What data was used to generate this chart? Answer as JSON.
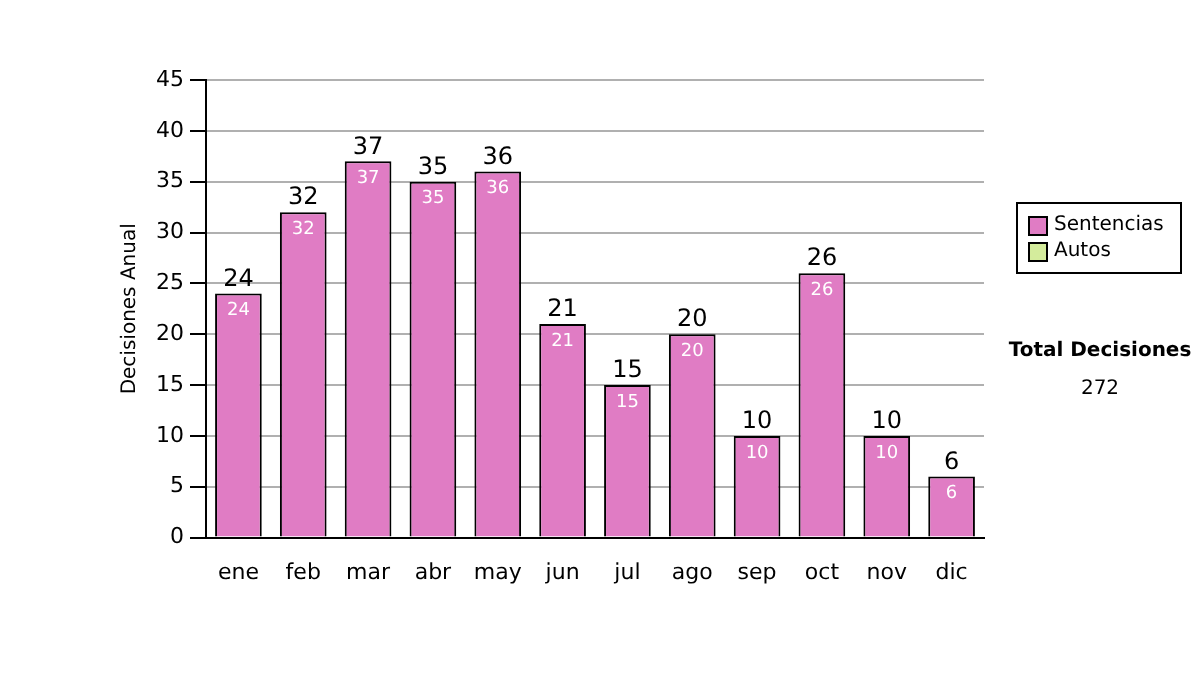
{
  "chart_data": {
    "type": "bar",
    "ylabel": "Decisiones Anual",
    "categories": [
      "ene",
      "feb",
      "mar",
      "abr",
      "may",
      "jun",
      "jul",
      "ago",
      "sep",
      "oct",
      "nov",
      "dic"
    ],
    "series": [
      {
        "name": "Sentencias",
        "color": "#e07cc4",
        "values": [
          24,
          32,
          37,
          35,
          36,
          21,
          15,
          20,
          10,
          26,
          10,
          6
        ]
      },
      {
        "name": "Autos",
        "color": "#d4ec9c",
        "values": [
          null,
          null,
          null,
          null,
          null,
          null,
          null,
          null,
          null,
          null,
          null,
          null
        ]
      }
    ],
    "ylim": [
      0,
      45
    ],
    "yticks": [
      0,
      5,
      10,
      15,
      20,
      25,
      30,
      35,
      40,
      45
    ],
    "grid": "y",
    "legend": "right",
    "data_labels": true,
    "annotations": [
      "Total Decisiones",
      "272",
      {
        "text": "24",
        "x": "ene",
        "y": 24
      },
      {
        "text": "32",
        "x": "feb",
        "y": 32
      },
      {
        "text": "37",
        "x": "mar",
        "y": 37
      },
      {
        "text": "35",
        "x": "abr",
        "y": 35
      },
      {
        "text": "36",
        "x": "may",
        "y": 36
      },
      {
        "text": "21",
        "x": "jun",
        "y": 21
      },
      {
        "text": "15",
        "x": "jul",
        "y": 15
      },
      {
        "text": "20",
        "x": "ago",
        "y": 20
      },
      {
        "text": "10",
        "x": "sep",
        "y": 10
      },
      {
        "text": "26",
        "x": "oct",
        "y": 26
      },
      {
        "text": "10",
        "x": "nov",
        "y": 10
      },
      {
        "text": "6",
        "x": "dic",
        "y": 6
      }
    ]
  }
}
